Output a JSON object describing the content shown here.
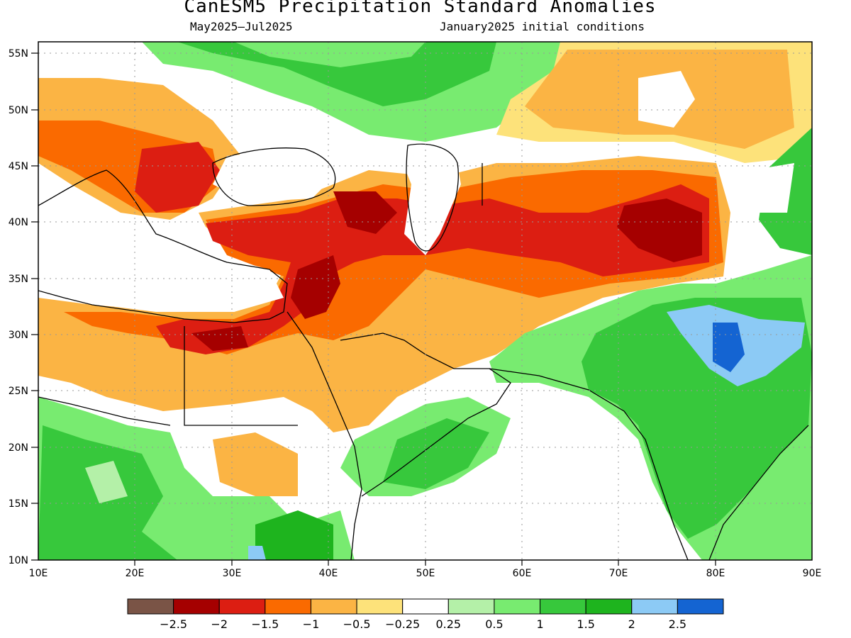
{
  "title": "CanESM5 Precipitation Standard Anomalies",
  "subtitle_left": "May2025–Jul2025",
  "subtitle_right": "January2025 initial conditions",
  "lat_labels": [
    "55N",
    "50N",
    "45N",
    "40N",
    "35N",
    "30N",
    "25N",
    "20N",
    "15N",
    "10N"
  ],
  "lon_labels": [
    "10E",
    "20E",
    "30E",
    "40E",
    "50E",
    "60E",
    "70E",
    "80E",
    "90E"
  ],
  "colorbar": {
    "colors": [
      "#7a5446",
      "#a50000",
      "#dc1e12",
      "#fa6a00",
      "#fbb444",
      "#fde27a",
      "#ffffff",
      "#b4f0a8",
      "#78eb70",
      "#37c83c",
      "#1eb41e",
      "#8ccaf5",
      "#1464d2"
    ],
    "labels": [
      "−2.5",
      "−2",
      "−1.5",
      "−1",
      "−0.5",
      "−0.25",
      "0.25",
      "0.5",
      "1",
      "1.5",
      "2",
      "2.5"
    ]
  }
}
